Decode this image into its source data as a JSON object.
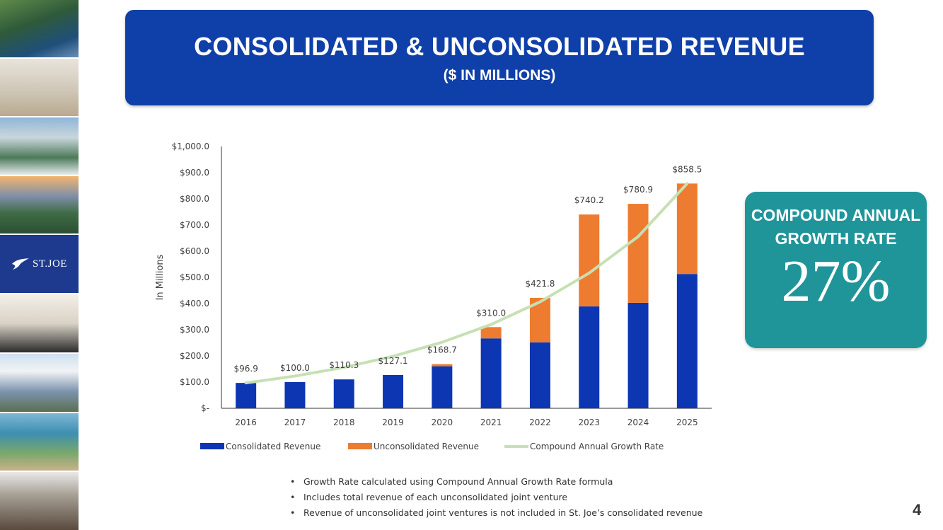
{
  "slide": {
    "title": "CONSOLIDATED & UNCONSOLIDATED REVENUE",
    "subtitle": "($ IN MILLIONS)",
    "page_number": "4",
    "logo_text": "ST.JOE"
  },
  "cagr_box": {
    "label": "COMPOUND ANNUAL GROWTH RATE",
    "value": "27%",
    "color": "#1f959a"
  },
  "notes": [
    "Growth Rate calculated using Compound Annual Growth Rate formula",
    "Includes total revenue of each unconsolidated joint venture",
    "Revenue of unconsolidated joint ventures is not included in St. Joe’s consolidated revenue"
  ],
  "chart_data": {
    "type": "bar",
    "stacked": true,
    "title": "",
    "xlabel": "",
    "ylabel": "In Millions",
    "categories": [
      "2016",
      "2017",
      "2018",
      "2019",
      "2020",
      "2021",
      "2022",
      "2023",
      "2024",
      "2025"
    ],
    "ylim": [
      0,
      1000
    ],
    "yticks": [
      0,
      100,
      200,
      300,
      400,
      500,
      600,
      700,
      800,
      900,
      1000
    ],
    "ytick_labels": [
      "$-",
      "$100.0",
      "$200.0",
      "$300.0",
      "$400.0",
      "$500.0",
      "$600.0",
      "$700.0",
      "$800.0",
      "$900.0",
      "$1,000.0"
    ],
    "series": [
      {
        "name": "Consolidated Revenue",
        "type": "bar",
        "color": "#0d36b2",
        "values": [
          96.9,
          100.0,
          110.3,
          127.1,
          160.5,
          267.0,
          252.0,
          389.0,
          403.0,
          513.0
        ]
      },
      {
        "name": "Unconsolidated Revenue",
        "type": "bar",
        "color": "#ee7c30",
        "values": [
          0,
          0,
          0,
          0,
          8.2,
          43.0,
          169.8,
          351.2,
          377.9,
          345.5
        ]
      },
      {
        "name": "Compound Annual Growth Rate",
        "type": "line",
        "color": "#c6e0b4",
        "values": [
          96.9,
          123.1,
          156.3,
          198.5,
          252.1,
          320.2,
          406.6,
          516.4,
          655.8,
          858.5
        ]
      }
    ],
    "total_labels": [
      "$96.9",
      "$100.0",
      "$110.3",
      "$127.1",
      "$168.7",
      "$310.0",
      "$421.8",
      "$740.2",
      "$780.9",
      "$858.5"
    ],
    "totals": [
      96.9,
      100.0,
      110.3,
      127.1,
      168.7,
      310.0,
      421.8,
      740.2,
      780.9,
      858.5
    ],
    "grid": false,
    "legend": "bottom"
  }
}
